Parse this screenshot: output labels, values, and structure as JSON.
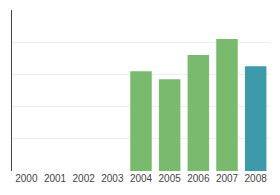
{
  "chart_data": {
    "type": "bar",
    "categories": [
      "2000",
      "2001",
      "2002",
      "2003",
      "2004",
      "2005",
      "2006",
      "2007",
      "2008"
    ],
    "values": [
      0,
      0,
      0,
      0,
      62,
      57,
      72,
      82,
      65
    ],
    "colors": [
      "#7aba6e",
      "#7aba6e",
      "#7aba6e",
      "#7aba6e",
      "#7aba6e",
      "#7aba6e",
      "#7aba6e",
      "#7aba6e",
      "#3d9aab"
    ],
    "ylim": [
      0,
      100
    ],
    "yticks": [
      20,
      40,
      60,
      80,
      100
    ],
    "grid": true,
    "tick_labels": "x"
  }
}
